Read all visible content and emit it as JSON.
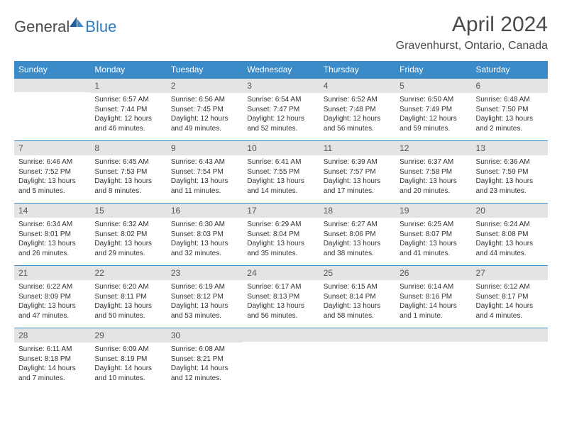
{
  "logo": {
    "text1": "General",
    "text2": "Blue"
  },
  "title": "April 2024",
  "location": "Gravenhurst, Ontario, Canada",
  "colors": {
    "header_bg": "#3b8bc9",
    "daynum_bg": "#e4e4e4",
    "daynum_border": "#3b8bc9",
    "text": "#333333",
    "logo_gray": "#4a4a4a",
    "logo_blue": "#2e7cc1"
  },
  "weekdays": [
    "Sunday",
    "Monday",
    "Tuesday",
    "Wednesday",
    "Thursday",
    "Friday",
    "Saturday"
  ],
  "weeks": [
    [
      null,
      {
        "n": "1",
        "sunrise": "6:57 AM",
        "sunset": "7:44 PM",
        "daylight": "12 hours and 46 minutes."
      },
      {
        "n": "2",
        "sunrise": "6:56 AM",
        "sunset": "7:45 PM",
        "daylight": "12 hours and 49 minutes."
      },
      {
        "n": "3",
        "sunrise": "6:54 AM",
        "sunset": "7:47 PM",
        "daylight": "12 hours and 52 minutes."
      },
      {
        "n": "4",
        "sunrise": "6:52 AM",
        "sunset": "7:48 PM",
        "daylight": "12 hours and 56 minutes."
      },
      {
        "n": "5",
        "sunrise": "6:50 AM",
        "sunset": "7:49 PM",
        "daylight": "12 hours and 59 minutes."
      },
      {
        "n": "6",
        "sunrise": "6:48 AM",
        "sunset": "7:50 PM",
        "daylight": "13 hours and 2 minutes."
      }
    ],
    [
      {
        "n": "7",
        "sunrise": "6:46 AM",
        "sunset": "7:52 PM",
        "daylight": "13 hours and 5 minutes."
      },
      {
        "n": "8",
        "sunrise": "6:45 AM",
        "sunset": "7:53 PM",
        "daylight": "13 hours and 8 minutes."
      },
      {
        "n": "9",
        "sunrise": "6:43 AM",
        "sunset": "7:54 PM",
        "daylight": "13 hours and 11 minutes."
      },
      {
        "n": "10",
        "sunrise": "6:41 AM",
        "sunset": "7:55 PM",
        "daylight": "13 hours and 14 minutes."
      },
      {
        "n": "11",
        "sunrise": "6:39 AM",
        "sunset": "7:57 PM",
        "daylight": "13 hours and 17 minutes."
      },
      {
        "n": "12",
        "sunrise": "6:37 AM",
        "sunset": "7:58 PM",
        "daylight": "13 hours and 20 minutes."
      },
      {
        "n": "13",
        "sunrise": "6:36 AM",
        "sunset": "7:59 PM",
        "daylight": "13 hours and 23 minutes."
      }
    ],
    [
      {
        "n": "14",
        "sunrise": "6:34 AM",
        "sunset": "8:01 PM",
        "daylight": "13 hours and 26 minutes."
      },
      {
        "n": "15",
        "sunrise": "6:32 AM",
        "sunset": "8:02 PM",
        "daylight": "13 hours and 29 minutes."
      },
      {
        "n": "16",
        "sunrise": "6:30 AM",
        "sunset": "8:03 PM",
        "daylight": "13 hours and 32 minutes."
      },
      {
        "n": "17",
        "sunrise": "6:29 AM",
        "sunset": "8:04 PM",
        "daylight": "13 hours and 35 minutes."
      },
      {
        "n": "18",
        "sunrise": "6:27 AM",
        "sunset": "8:06 PM",
        "daylight": "13 hours and 38 minutes."
      },
      {
        "n": "19",
        "sunrise": "6:25 AM",
        "sunset": "8:07 PM",
        "daylight": "13 hours and 41 minutes."
      },
      {
        "n": "20",
        "sunrise": "6:24 AM",
        "sunset": "8:08 PM",
        "daylight": "13 hours and 44 minutes."
      }
    ],
    [
      {
        "n": "21",
        "sunrise": "6:22 AM",
        "sunset": "8:09 PM",
        "daylight": "13 hours and 47 minutes."
      },
      {
        "n": "22",
        "sunrise": "6:20 AM",
        "sunset": "8:11 PM",
        "daylight": "13 hours and 50 minutes."
      },
      {
        "n": "23",
        "sunrise": "6:19 AM",
        "sunset": "8:12 PM",
        "daylight": "13 hours and 53 minutes."
      },
      {
        "n": "24",
        "sunrise": "6:17 AM",
        "sunset": "8:13 PM",
        "daylight": "13 hours and 56 minutes."
      },
      {
        "n": "25",
        "sunrise": "6:15 AM",
        "sunset": "8:14 PM",
        "daylight": "13 hours and 58 minutes."
      },
      {
        "n": "26",
        "sunrise": "6:14 AM",
        "sunset": "8:16 PM",
        "daylight": "14 hours and 1 minute."
      },
      {
        "n": "27",
        "sunrise": "6:12 AM",
        "sunset": "8:17 PM",
        "daylight": "14 hours and 4 minutes."
      }
    ],
    [
      {
        "n": "28",
        "sunrise": "6:11 AM",
        "sunset": "8:18 PM",
        "daylight": "14 hours and 7 minutes."
      },
      {
        "n": "29",
        "sunrise": "6:09 AM",
        "sunset": "8:19 PM",
        "daylight": "14 hours and 10 minutes."
      },
      {
        "n": "30",
        "sunrise": "6:08 AM",
        "sunset": "8:21 PM",
        "daylight": "14 hours and 12 minutes."
      },
      null,
      null,
      null,
      null
    ]
  ],
  "labels": {
    "sunrise": "Sunrise:",
    "sunset": "Sunset:",
    "daylight": "Daylight:"
  }
}
